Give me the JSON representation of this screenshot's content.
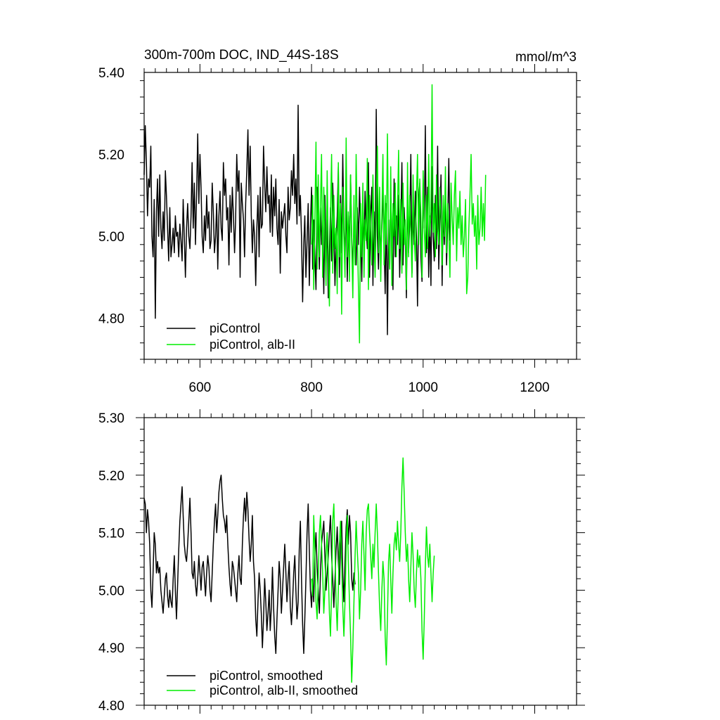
{
  "chart_data": [
    {
      "type": "line",
      "title": "300m-700m DOC, IND_44S-18S",
      "unit_label": "mmol/m^3",
      "xlim": [
        500,
        1275
      ],
      "ylim": [
        4.7,
        5.4
      ],
      "x_ticks": [
        600,
        800,
        1000,
        1200
      ],
      "y_ticks": [
        "4.80",
        "5.00",
        "5.20",
        "5.40"
      ],
      "legend_position": "bottom-left",
      "series": [
        {
          "name": "piControl",
          "color": "#000000",
          "x_start": 500,
          "x_step": 2,
          "values": [
            5.15,
            5.27,
            5.18,
            5.05,
            5.14,
            5.12,
            5.22,
            5.0,
            4.95,
            5.09,
            4.8,
            5.06,
            5.14,
            5.0,
            5.15,
            5.02,
            4.97,
            5.06,
            4.99,
            5.16,
            5.1,
            5.02,
            4.94,
            5.07,
            4.95,
            4.98,
            5.02,
            4.96,
            5.05,
            5.0,
            5.01,
            4.95,
            5.03,
            4.99,
            4.94,
            5.09,
            5.0,
            4.9,
            5.02,
            5.08,
            5.0,
            4.97,
            5.05,
            5.18,
            5.02,
            5.13,
            4.98,
            5.1,
            5.25,
            5.08,
            5.2,
            5.12,
            5.0,
            4.96,
            5.05,
            4.99,
            5.1,
            5.02,
            5.06,
            4.97,
            4.99,
            5.13,
            5.06,
            4.96,
            5.0,
            5.08,
            4.92,
            5.05,
            5.11,
            5.02,
            4.99,
            5.18,
            5.1,
            5.14,
            5.04,
            5.07,
            4.93,
            5.1,
            5.01,
            5.12,
            5.05,
            4.96,
            5.04,
            5.2,
            5.11,
            5.16,
            4.9,
            5.13,
            5.08,
            5.04,
            4.95,
            5.08,
            5.16,
            5.26,
            5.1,
            5.22,
            5.05,
            4.96,
            5.04,
            5.0,
            4.88,
            5.02,
            5.1,
            4.95,
            5.12,
            5.02,
            5.03,
            5.22,
            5.13,
            5.06,
            5.17,
            5.08,
            5.1,
            5.01,
            5.15,
            5.0,
            5.12,
            5.05,
            5.14,
            5.02,
            4.98,
            5.09,
            4.91,
            5.06,
            5.02,
            5.05,
            5.08,
            5.0,
            4.96,
            5.12,
            5.04,
            5.07,
            5.16,
            5.1,
            5.2,
            5.08,
            5.14,
            5.03,
            5.32,
            5.05,
            5.1,
            5.0,
            4.84,
            4.98,
            5.05,
            4.9,
            4.99,
            5.08,
            4.88,
            5.02,
            5.12,
            4.92,
            5.04,
            4.95,
            4.87,
            5.12,
            5.03,
            4.92,
            5.07,
            4.98,
            5.0,
            4.86,
            5.1,
            4.93,
            5.04,
            4.85,
            4.96,
            5.07,
            4.94,
            5.13,
            5.02,
            4.88,
            4.99,
            5.05,
            5.17,
            4.9,
            5.1,
            4.96,
            5.2,
            5.02,
            4.95,
            5.1,
            4.89,
            5.05,
            4.97,
            5.15,
            5.0,
            4.91,
            5.03,
            4.99,
            4.93,
            5.07,
            4.98,
            5.12,
            5.02,
            4.89,
            5.08,
            4.95,
            5.11,
            5.02,
            4.97,
            5.18,
            4.9,
            5.05,
            5.12,
            4.88,
            5.06,
            4.96,
            5.31,
            5.0,
            4.92,
            5.07,
            4.95,
            5.02,
            5.12,
            4.99,
            4.86,
            5.08,
            4.76,
            5.04,
            4.92,
            5.1,
            5.0,
            4.87,
            5.14,
            4.95,
            5.05,
            4.98,
            5.1,
            4.9,
            5.02,
            5.18,
            4.93,
            5.07,
            5.0,
            4.85,
            5.12,
            4.96,
            5.03,
            5.2,
            4.91,
            5.06,
            4.98,
            5.11,
            5.0,
            4.83,
            5.09,
            5.13,
            4.95,
            4.89,
            5.14,
            5.02,
            5.27,
            4.96,
            5.12,
            4.9,
            5.05,
            4.88,
            5.17,
            5.0,
            4.94,
            5.1,
            4.97,
            5.22,
            4.92,
            5.04,
            5.15,
            4.88,
            5.07,
            4.98,
            5.11,
            4.93,
            5.03,
            5.19,
            4.99
          ]
        },
        {
          "name": "piControl, alb-II",
          "color": "#00ee00",
          "x_start": 800,
          "x_step": 2,
          "values": [
            4.98,
            5.1,
            4.87,
            5.04,
            5.23,
            4.92,
            5.15,
            4.95,
            5.08,
            5.2,
            4.9,
            5.12,
            5.0,
            4.88,
            5.16,
            4.95,
            4.83,
            5.05,
            5.2,
            4.91,
            5.1,
            4.97,
            5.02,
            4.86,
            5.18,
            4.95,
            5.08,
            4.81,
            5.12,
            5.0,
            4.9,
            5.24,
            4.95,
            5.06,
            4.89,
            5.15,
            4.98,
            4.85,
            5.1,
            4.93,
            5.2,
            5.02,
            4.88,
            4.74,
            5.08,
            4.95,
            5.13,
            4.9,
            5.04,
            4.99,
            5.19,
            4.87,
            5.1,
            5.02,
            4.93,
            5.15,
            5.0,
            4.9,
            5.07,
            5.22,
            4.96,
            5.12,
            4.89,
            5.05,
            5.2,
            4.93,
            5.1,
            4.98,
            5.25,
            5.0,
            4.92,
            5.17,
            4.88,
            5.08,
            5.0,
            5.13,
            4.95,
            5.06,
            5.21,
            4.97,
            5.09,
            4.91,
            5.13,
            4.98,
            5.04,
            4.87,
            5.18,
            4.95,
            5.1,
            5.02,
            4.9,
            5.15,
            5.0,
            4.94,
            5.1,
            5.2,
            4.98,
            5.14,
            5.05,
            4.9,
            5.16,
            5.02,
            4.95,
            5.1,
            4.97,
            5.2,
            5.0,
            5.06,
            5.37,
            5.01,
            5.08,
            4.95,
            5.15,
            5.02,
            4.98,
            5.12,
            5.05,
            4.93,
            5.1,
            5.0,
            5.17,
            4.96,
            5.08,
            5.02,
            4.9,
            5.13,
            5.05,
            4.98,
            5.1,
            5.16,
            4.94,
            5.07,
            5.02,
            5.11,
            4.98,
            5.05,
            4.95,
            5.0,
            5.09,
            4.86,
            4.9,
            5.02,
            5.1,
            5.2,
            5.03,
            5.08,
            5.0,
            5.05,
            4.92,
            5.1,
            4.98,
            5.02,
            5.12,
            5.0,
            5.08,
            4.99,
            5.15
          ]
        }
      ]
    },
    {
      "type": "line",
      "title": "",
      "xlim": [
        500,
        1275
      ],
      "ylim": [
        4.8,
        5.3
      ],
      "x_ticks": [
        600,
        800,
        1000,
        1200
      ],
      "y_ticks": [
        "4.80",
        "4.90",
        "5.00",
        "5.10",
        "5.20",
        "5.30"
      ],
      "legend_position": "bottom-left",
      "series": [
        {
          "name": "piControl, smoothed",
          "color": "#000000",
          "x_start": 500,
          "x_step": 2,
          "values": [
            5.16,
            5.15,
            5.1,
            5.14,
            5.12,
            5.08,
            5.0,
            4.97,
            5.03,
            5.1,
            5.08,
            5.03,
            5.05,
            5.03,
            5.04,
            5.0,
            4.98,
            4.96,
            4.99,
            5.02,
            5.03,
            4.99,
            4.97,
            5.0,
            4.98,
            4.97,
            5.02,
            5.06,
            5.0,
            4.95,
            5.01,
            5.07,
            5.12,
            5.15,
            5.18,
            5.13,
            5.08,
            5.06,
            5.05,
            5.08,
            5.12,
            5.16,
            5.1,
            5.03,
            5.02,
            5.05,
            5.01,
            4.99,
            5.02,
            5.06,
            5.03,
            5.0,
            5.04,
            5.05,
            5.02,
            4.99,
            5.03,
            5.06,
            5.04,
            5.0,
            4.98,
            5.03,
            5.08,
            5.12,
            5.15,
            5.1,
            5.13,
            5.17,
            5.19,
            5.2,
            5.16,
            5.13,
            5.12,
            5.1,
            5.13,
            5.08,
            5.04,
            5.01,
            4.99,
            5.05,
            5.04,
            5.02,
            5.0,
            4.98,
            5.03,
            5.06,
            5.02,
            5.01,
            5.08,
            5.13,
            5.16,
            5.12,
            5.17,
            5.14,
            5.09,
            5.05,
            5.08,
            5.13,
            5.05,
            5.02,
            4.95,
            4.92,
            4.98,
            5.03,
            5.0,
            4.96,
            4.9,
            4.95,
            5.02,
            4.98,
            4.93,
            4.96,
            5.0,
            4.93,
            4.97,
            5.04,
            4.97,
            4.92,
            4.89,
            4.95,
            5.0,
            5.05,
            5.02,
            4.96,
            5.0,
            5.04,
            5.08,
            5.03,
            4.98,
            5.02,
            5.05,
            4.97,
            4.94,
            4.98,
            5.03,
            5.06,
            5.0,
            4.95,
            4.98,
            5.07,
            5.12,
            5.02,
            4.94,
            4.89,
            4.95,
            5.02,
            5.1,
            5.15,
            5.07,
            5.0,
            4.97,
            5.02,
            4.98,
            5.06,
            5.1,
            5.04,
            5.0,
            4.96,
            5.03,
            5.08,
            5.1,
            5.12,
            5.06,
            5.0,
            5.03,
            5.06,
            5.1,
            5.13,
            5.06,
            5.02,
            4.97,
            5.02,
            5.07,
            5.11,
            5.05,
            5.01,
            5.08,
            5.12,
            5.03,
            4.98,
            5.05,
            5.11,
            5.14,
            5.08,
            5.13,
            5.1,
            5.02,
            5.0,
            5.03,
            5.01
          ]
        },
        {
          "name": "piControl, alb-II, smoothed",
          "color": "#00ee00",
          "x_start": 800,
          "x_step": 2,
          "values": [
            5.02,
            4.99,
            5.13,
            5.07,
            4.98,
            4.95,
            5.02,
            5.1,
            5.13,
            5.08,
            5.03,
            4.96,
            5.0,
            5.06,
            5.1,
            5.03,
            4.96,
            4.92,
            5.0,
            5.12,
            5.15,
            5.07,
            4.98,
            4.93,
            5.0,
            5.08,
            5.12,
            5.05,
            4.97,
            4.92,
            4.98,
            5.07,
            5.13,
            5.05,
            4.98,
            4.92,
            4.84,
            4.9,
            4.98,
            5.06,
            5.12,
            5.07,
            5.03,
            4.95,
            5.0,
            5.08,
            5.12,
            5.06,
            5.0,
            5.1,
            5.14,
            5.15,
            5.1,
            5.06,
            5.02,
            5.08,
            5.04,
            5.1,
            5.15,
            5.1,
            5.03,
            4.97,
            4.93,
            5.0,
            5.05,
            5.02,
            4.92,
            4.87,
            4.95,
            5.05,
            5.08,
            5.02,
            4.96,
            5.03,
            5.08,
            5.1,
            5.07,
            5.12,
            5.08,
            5.05,
            5.1,
            5.18,
            5.23,
            5.17,
            5.1,
            5.05,
            5.08,
            5.02,
            4.98,
            5.04,
            5.1,
            5.06,
            5.0,
            4.97,
            5.03,
            5.07,
            5.04,
            5.06,
            5.02,
            4.93,
            4.88,
            4.95,
            5.04,
            5.11,
            5.06,
            5.04,
            5.08,
            5.03,
            4.98,
            5.03,
            5.06
          ]
        }
      ]
    }
  ]
}
